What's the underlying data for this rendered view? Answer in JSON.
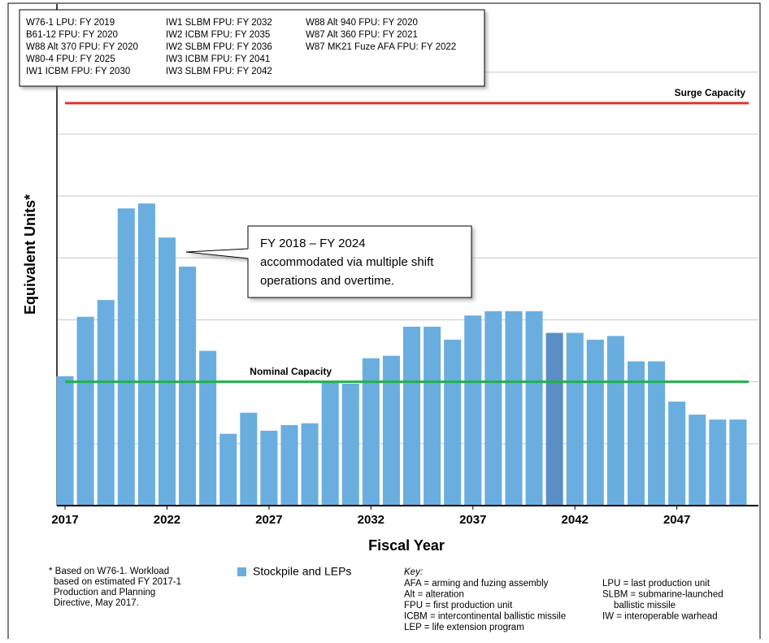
{
  "chart_data": {
    "type": "bar",
    "y_label": "Equivalent Units*",
    "x_label": "Fiscal Year",
    "x": [
      2017,
      2018,
      2019,
      2020,
      2021,
      2022,
      2023,
      2024,
      2025,
      2026,
      2027,
      2028,
      2029,
      2030,
      2031,
      2032,
      2033,
      2034,
      2035,
      2036,
      2037,
      2038,
      2039,
      2040,
      2041,
      2042,
      2043,
      2044,
      2045,
      2046,
      2047,
      2048,
      2049,
      2050
    ],
    "series": [
      {
        "name": "Stockpile and LEPs",
        "color": "#6aaee0",
        "values": [
          2.09,
          3.05,
          3.32,
          4.8,
          4.88,
          4.33,
          3.86,
          2.5,
          1.16,
          1.5,
          1.21,
          1.3,
          1.33,
          2.0,
          1.97,
          2.38,
          2.42,
          2.89,
          2.89,
          2.68,
          3.07,
          3.14,
          3.14,
          3.14,
          2.79,
          2.79,
          2.68,
          2.74,
          2.33,
          2.33,
          1.68,
          1.47,
          1.39,
          1.39
        ],
        "colors": [
          "#6aaee0",
          "#6aaee0",
          "#6aaee0",
          "#6aaee0",
          "#6aaee0",
          "#6aaee0",
          "#6aaee0",
          "#6aaee0",
          "#6aaee0",
          "#6aaee0",
          "#6aaee0",
          "#6aaee0",
          "#6aaee0",
          "#6aaee0",
          "#6aaee0",
          "#6aaee0",
          "#6aaee0",
          "#6aaee0",
          "#6aaee0",
          "#6aaee0",
          "#6aaee0",
          "#6aaee0",
          "#6aaee0",
          "#6aaee0",
          "#5a8fc6",
          "#6aaee0",
          "#6aaee0",
          "#6aaee0",
          "#6aaee0",
          "#6aaee0",
          "#6aaee0",
          "#6aaee0",
          "#6aaee0",
          "#6aaee0"
        ]
      }
    ],
    "xlim": [
      2016.6,
      2051
    ],
    "xticks": [
      2017,
      2022,
      2027,
      2032,
      2037,
      2042,
      2047
    ],
    "ylim": [
      0,
      8.1
    ],
    "yticks": [
      0,
      1,
      2,
      3,
      4,
      5,
      6,
      7
    ],
    "grid": true,
    "reference_lines": [
      {
        "label": "Surge Capacity",
        "value": 6.5,
        "color": "#e0362c"
      },
      {
        "label": "Nominal Capacity",
        "value": 2.0,
        "color": "#22b14c"
      }
    ],
    "info_box": [
      [
        "W76-1 LPU:  FY 2019",
        "B61-12 FPU:  FY 2020",
        "W88 Alt 370 FPU:  FY 2020",
        "W80-4 FPU:  FY 2025",
        "IW1 ICBM FPU:  FY 2030"
      ],
      [
        "IW1 SLBM FPU:  FY 2032",
        "IW2 ICBM FPU:  FY 2035",
        "IW2 SLBM FPU:  FY 2036",
        "IW3 ICBM FPU:  FY 2041",
        "IW3 SLBM FPU:  FY 2042"
      ],
      [
        "W88 Alt 940 FPU:  FY 2020",
        "W87 Alt 360 FPU:  FY 2021",
        "W87 MK21 Fuze AFA FPU:  FY 2022"
      ]
    ],
    "annotation": [
      "FY 2018 – FY 2024",
      "accommodated via multiple shift",
      "operations and overtime."
    ],
    "footnote": [
      "* Based on W76-1.  Workload",
      "based on estimated FY 2017-1",
      "Production and Planning",
      "Directive, May 2017."
    ],
    "key_title": "Key:",
    "key": [
      [
        "AFA = arming and fuzing assembly",
        "Alt = alteration",
        "FPU = first production unit",
        "ICBM = intercontinental ballistic missile",
        "LEP = life extension program"
      ],
      [
        "LPU = last production unit",
        "SLBM = submarine-launched",
        "ballistic missile",
        "IW = interoperable warhead"
      ]
    ]
  }
}
